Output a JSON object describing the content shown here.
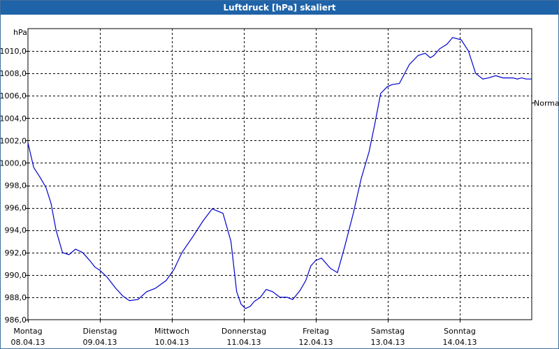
{
  "window": {
    "title": "Luftdruck [hPa] skaliert"
  },
  "chart_data": {
    "type": "line",
    "title": "Luftdruck [hPa] skaliert",
    "ylabel": "hPa",
    "ylim": [
      986,
      1012
    ],
    "yticks": [
      986,
      988,
      990,
      992,
      994,
      996,
      998,
      1000,
      1002,
      1004,
      1006,
      1008,
      1010
    ],
    "ytick_labels": [
      "986,0",
      "988,0",
      "990,0",
      "992,0",
      "994,0",
      "996,0",
      "998,0",
      "1000,0",
      "1002,0",
      "1004,0",
      "1006,0",
      "1008,0",
      "1010,0"
    ],
    "xlim": [
      0,
      7
    ],
    "xticks": [
      {
        "x": 0,
        "day": "Montag",
        "date": "08.04.13"
      },
      {
        "x": 1,
        "day": "Dienstag",
        "date": "09.04.13"
      },
      {
        "x": 2,
        "day": "Mittwoch",
        "date": "10.04.13"
      },
      {
        "x": 3,
        "day": "Donnerstag",
        "date": "11.04.13"
      },
      {
        "x": 4,
        "day": "Freitag",
        "date": "12.04.13"
      },
      {
        "x": 5,
        "day": "Samstag",
        "date": "13.04.13"
      },
      {
        "x": 6,
        "day": "Sonntag",
        "date": "14.04.13"
      }
    ],
    "reference": {
      "label": "Normal",
      "value": 1005.4
    },
    "grid": true,
    "series": [
      {
        "color": "#0000cc",
        "x": [
          0,
          0.08,
          0.17,
          0.25,
          0.32,
          0.39,
          0.48,
          0.57,
          0.66,
          0.76,
          0.87,
          0.93,
          1.0,
          1.1,
          1.22,
          1.32,
          1.41,
          1.53,
          1.65,
          1.77,
          1.92,
          2.03,
          2.14,
          2.3,
          2.43,
          2.56,
          2.71,
          2.82,
          2.9,
          2.96,
          3.02,
          3.09,
          3.14,
          3.23,
          3.31,
          3.4,
          3.5,
          3.6,
          3.68,
          3.78,
          3.86,
          3.93,
          4.0,
          4.08,
          4.2,
          4.3,
          4.4,
          4.52,
          4.63,
          4.74,
          4.82,
          4.9,
          4.99,
          5.06,
          5.16,
          5.3,
          5.42,
          5.52,
          5.59,
          5.64,
          5.72,
          5.82,
          5.9,
          6.02,
          6.12,
          6.22,
          6.32,
          6.4,
          6.5,
          6.6,
          6.67,
          6.74,
          6.8,
          6.86,
          6.92,
          7.0
        ],
        "values": [
          1001.8,
          999.6,
          998.7,
          997.8,
          996.4,
          994.0,
          992.0,
          991.8,
          992.3,
          992.0,
          991.2,
          990.7,
          990.4,
          989.8,
          988.8,
          988.1,
          987.7,
          987.8,
          988.5,
          988.8,
          989.5,
          990.5,
          992.0,
          993.5,
          994.8,
          995.9,
          995.5,
          993.0,
          988.5,
          987.4,
          987.0,
          987.2,
          987.6,
          988.0,
          988.7,
          988.5,
          988.0,
          988.0,
          987.8,
          988.6,
          989.5,
          990.8,
          991.3,
          991.5,
          990.6,
          990.2,
          992.5,
          995.5,
          998.6,
          1001.0,
          1003.5,
          1006.2,
          1006.8,
          1007.0,
          1007.1,
          1008.8,
          1009.6,
          1009.8,
          1009.4,
          1009.6,
          1010.2,
          1010.6,
          1011.2,
          1011.0,
          1010.0,
          1008.0,
          1007.5,
          1007.6,
          1007.8,
          1007.6,
          1007.6,
          1007.6,
          1007.5,
          1007.6,
          1007.5,
          1007.5
        ]
      }
    ]
  }
}
